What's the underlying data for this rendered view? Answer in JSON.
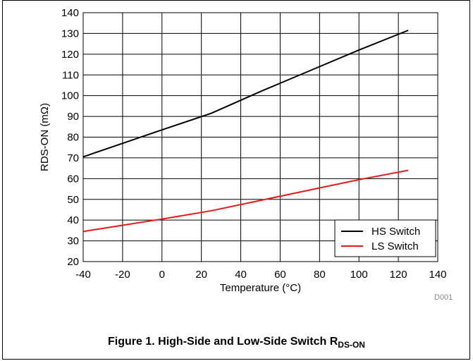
{
  "chart_data": {
    "type": "line",
    "xlabel": "Temperature (°C)",
    "ylabel": "RDS-ON (mΩ)",
    "xlim": [
      -40,
      140
    ],
    "ylim": [
      20,
      140
    ],
    "xticks": [
      -40,
      -20,
      0,
      20,
      40,
      60,
      80,
      100,
      120,
      140
    ],
    "yticks": [
      20,
      30,
      40,
      50,
      60,
      70,
      80,
      90,
      100,
      110,
      120,
      130,
      140
    ],
    "grid": true,
    "legend_position": "bottom-right",
    "series": [
      {
        "name": "HS Switch",
        "color": "#000000",
        "x": [
          -40,
          -20,
          0,
          25,
          50,
          75,
          100,
          125
        ],
        "y": [
          70.5,
          77,
          83.5,
          91.5,
          102,
          112,
          122,
          131.5
        ]
      },
      {
        "name": "LS Switch",
        "color": "#e31a1a",
        "x": [
          -40,
          -20,
          0,
          25,
          50,
          75,
          100,
          125
        ],
        "y": [
          34.5,
          37.5,
          40.5,
          44.5,
          49.5,
          54.5,
          59.5,
          64
        ]
      }
    ],
    "watermark": "D001"
  },
  "caption": {
    "main": "Figure 1. High-Side and Low-Side Switch R",
    "sub": "DS-ON"
  }
}
